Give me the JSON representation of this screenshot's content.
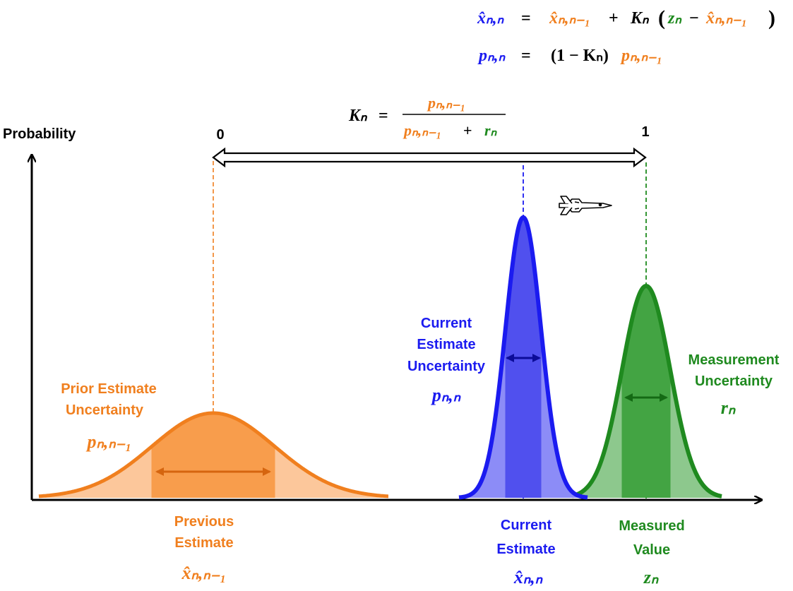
{
  "colors": {
    "orange": "#f07f1e",
    "blue": "#1b1bf0",
    "green": "#1f8a1f",
    "black": "#000000"
  },
  "equations": {
    "state_update": {
      "lhs": "x̂ₙ,ₙ",
      "equals": "=",
      "prior": "x̂ₙ,ₙ₋₁",
      "plus": "+",
      "gain": "Kₙ",
      "measurement": "zₙ",
      "minus": "−",
      "prior_again": "x̂ₙ,ₙ₋₁"
    },
    "covariance_update": {
      "lhs": "pₙ,ₙ",
      "equals": "=",
      "factor": "(1 − Kₙ)",
      "prior_var": "pₙ,ₙ₋₁"
    },
    "kalman_gain": {
      "lhs": "Kₙ",
      "equals": "=",
      "numerator": "pₙ,ₙ₋₁",
      "denominator_a": "pₙ,ₙ₋₁",
      "plus": "+",
      "denominator_b": "rₙ"
    }
  },
  "axis": {
    "y_label": "Probability",
    "gain_min": "0",
    "gain_max": "1"
  },
  "icons": {
    "airplane": "airplane-icon"
  },
  "prior": {
    "uncertainty_line1": "Prior Estimate",
    "uncertainty_line2": "Uncertainty",
    "uncertainty_symbol": "pₙ,ₙ₋₁",
    "estimate_line1": "Previous",
    "estimate_line2": "Estimate",
    "estimate_symbol": "x̂ₙ,ₙ₋₁"
  },
  "current": {
    "uncertainty_line1": "Current",
    "uncertainty_line2": "Estimate",
    "uncertainty_line3": "Uncertainty",
    "uncertainty_symbol": "pₙ,ₙ",
    "estimate_line1": "Current",
    "estimate_line2": "Estimate",
    "estimate_symbol": "x̂ₙ,ₙ"
  },
  "measurement": {
    "uncertainty_line1": "Measurement",
    "uncertainty_line2": "Uncertainty",
    "uncertainty_symbol": "rₙ",
    "value_line1": "Measured",
    "value_line2": "Value",
    "value_symbol": "zₙ"
  }
}
